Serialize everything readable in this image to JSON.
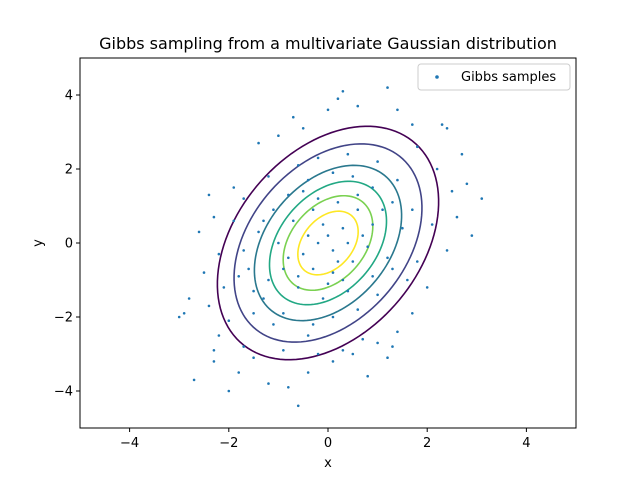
{
  "chart_data": {
    "type": "scatter",
    "title": "Gibbs sampling from a multivariate Gaussian distribution",
    "xlabel": "x",
    "ylabel": "y",
    "xlim": [
      -5,
      5
    ],
    "ylim": [
      -5,
      5
    ],
    "xticks": [
      -4,
      -2,
      0,
      2,
      4
    ],
    "yticks": [
      -4,
      -2,
      0,
      2,
      4
    ],
    "grid": false,
    "legend_position": "top-right",
    "series": [
      {
        "name": "Gibbs samples",
        "color": "#1f77b4",
        "marker": "point",
        "points": [
          [
            -2.7,
            -3.7
          ],
          [
            -2.3,
            -3.2
          ],
          [
            -2.0,
            -4.0
          ],
          [
            -1.8,
            -3.5
          ],
          [
            -1.2,
            -3.8
          ],
          [
            -0.6,
            -4.4
          ],
          [
            -0.8,
            -3.9
          ],
          [
            -0.4,
            -3.5
          ],
          [
            0.1,
            -3.2
          ],
          [
            0.8,
            -3.6
          ],
          [
            1.2,
            -3.1
          ],
          [
            1.3,
            -2.8
          ],
          [
            -2.2,
            -2.5
          ],
          [
            -1.7,
            -2.8
          ],
          [
            -2.0,
            -2.1
          ],
          [
            -2.8,
            -1.5
          ],
          [
            -2.9,
            -1.9
          ],
          [
            -3.0,
            -2.0
          ],
          [
            -1.5,
            -1.9
          ],
          [
            -2.4,
            -1.7
          ],
          [
            -2.6,
            0.3
          ],
          [
            -2.4,
            1.3
          ],
          [
            -1.9,
            1.5
          ],
          [
            -2.2,
            -0.3
          ],
          [
            -1.8,
            -0.9
          ],
          [
            -2.1,
            -1.2
          ],
          [
            -1.4,
            2.7
          ],
          [
            -1.0,
            2.9
          ],
          [
            -0.5,
            3.1
          ],
          [
            0.0,
            3.6
          ],
          [
            0.2,
            3.9
          ],
          [
            0.3,
            4.1
          ],
          [
            0.6,
            3.7
          ],
          [
            1.2,
            4.2
          ],
          [
            1.4,
            3.6
          ],
          [
            1.7,
            3.2
          ],
          [
            2.3,
            3.2
          ],
          [
            2.4,
            3.1
          ],
          [
            2.7,
            2.4
          ],
          [
            2.2,
            2.0
          ],
          [
            2.8,
            1.6
          ],
          [
            3.1,
            1.2
          ],
          [
            2.6,
            0.7
          ],
          [
            2.1,
            0.5
          ],
          [
            2.4,
            -0.2
          ],
          [
            2.0,
            -1.2
          ],
          [
            1.7,
            -1.9
          ],
          [
            1.4,
            -2.4
          ],
          [
            0.7,
            -2.6
          ],
          [
            0.3,
            -2.9
          ],
          [
            -0.3,
            -2.2
          ],
          [
            -0.9,
            -1.9
          ],
          [
            -1.3,
            -1.5
          ],
          [
            -1.6,
            -0.7
          ],
          [
            -1.4,
            0.3
          ],
          [
            -1.1,
            0.9
          ],
          [
            -0.8,
            1.3
          ],
          [
            -0.4,
            1.7
          ],
          [
            0.1,
            1.9
          ],
          [
            0.5,
            1.8
          ],
          [
            0.9,
            1.5
          ],
          [
            1.3,
            1.1
          ],
          [
            1.5,
            0.4
          ],
          [
            1.2,
            -0.4
          ],
          [
            0.9,
            -0.9
          ],
          [
            0.4,
            -1.3
          ],
          [
            -0.1,
            -1.5
          ],
          [
            -0.6,
            -1.2
          ],
          [
            -0.9,
            -0.7
          ],
          [
            -1.0,
            0.0
          ],
          [
            -0.7,
            0.6
          ],
          [
            -0.3,
            0.9
          ],
          [
            0.2,
            1.1
          ],
          [
            0.6,
            0.9
          ],
          [
            0.9,
            0.5
          ],
          [
            0.8,
            -0.1
          ],
          [
            0.5,
            -0.5
          ],
          [
            0.1,
            -0.8
          ],
          [
            -0.3,
            -0.7
          ],
          [
            -0.5,
            -0.3
          ],
          [
            -0.4,
            0.2
          ],
          [
            -0.1,
            0.5
          ],
          [
            0.3,
            0.4
          ],
          [
            0.4,
            0.0
          ],
          [
            0.1,
            -0.2
          ],
          [
            -0.2,
            0.0
          ],
          [
            0.0,
            0.2
          ],
          [
            0.2,
            -0.5
          ],
          [
            -0.6,
            -0.9
          ],
          [
            -1.2,
            -1.0
          ],
          [
            -1.5,
            -1.3
          ],
          [
            -1.1,
            -2.2
          ],
          [
            -0.4,
            -2.5
          ],
          [
            0.1,
            -2.0
          ],
          [
            0.6,
            -1.8
          ],
          [
            1.0,
            -1.4
          ],
          [
            1.6,
            -1.0
          ],
          [
            1.8,
            -0.5
          ],
          [
            1.7,
            0.9
          ],
          [
            1.4,
            1.7
          ],
          [
            1.0,
            2.2
          ],
          [
            0.4,
            2.4
          ],
          [
            -0.2,
            2.3
          ],
          [
            -0.6,
            2.1
          ],
          [
            -1.2,
            1.8
          ],
          [
            -1.7,
            1.2
          ],
          [
            -1.9,
            0.6
          ],
          [
            -1.7,
            -0.2
          ],
          [
            -0.9,
            -2.9
          ],
          [
            -0.2,
            -3.0
          ],
          [
            0.5,
            -3.0
          ],
          [
            1.0,
            -2.7
          ],
          [
            -1.5,
            -3.1
          ],
          [
            -2.3,
            -2.9
          ],
          [
            -0.7,
            3.4
          ],
          [
            1.8,
            2.6
          ],
          [
            2.5,
            1.4
          ],
          [
            2.9,
            0.2
          ],
          [
            -2.5,
            -0.8
          ],
          [
            -2.3,
            0.7
          ],
          [
            -0.2,
            1.2
          ],
          [
            0.7,
            0.2
          ],
          [
            -0.8,
            -0.4
          ],
          [
            0.3,
            -1.0
          ],
          [
            1.1,
            0.9
          ],
          [
            -1.3,
            0.6
          ],
          [
            0.0,
            -1.1
          ],
          [
            0.6,
            1.3
          ],
          [
            -0.5,
            1.4
          ],
          [
            1.3,
            -0.7
          ]
        ]
      }
    ],
    "contours": {
      "colormap": "viridis",
      "mean": [
        0,
        0
      ],
      "covariance": [
        [
          1,
          0.5
        ],
        [
          0.5,
          2
        ]
      ],
      "levels": [
        0.01,
        0.02,
        0.04,
        0.06,
        0.08,
        0.1
      ],
      "level_colors": [
        "#440154",
        "#414487",
        "#2a788e",
        "#22a884",
        "#7ad151",
        "#fde725"
      ]
    }
  }
}
